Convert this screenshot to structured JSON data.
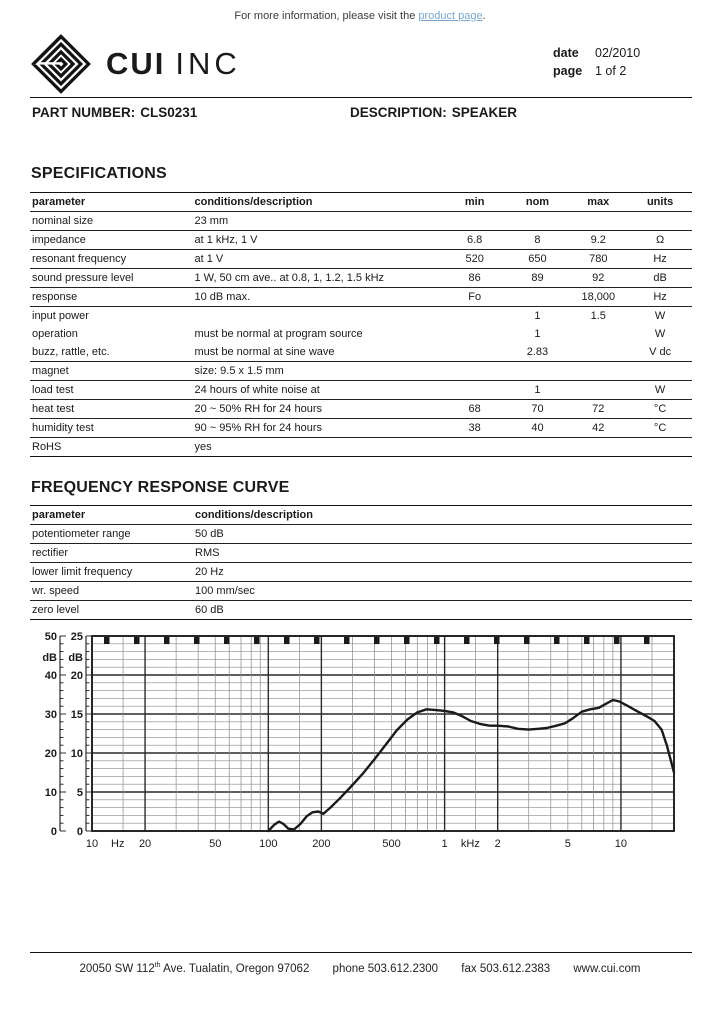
{
  "header": {
    "info_prefix": "For more information, please visit the ",
    "info_link": "product page",
    "info_suffix": ".",
    "brand_bold": "CUI",
    "brand_light": "INC",
    "date_label": "date",
    "date_value": "02/2010",
    "page_label": "page",
    "page_value": "1 of 2"
  },
  "part": {
    "part_label": "PART NUMBER:",
    "part_value": "CLS0231",
    "desc_label": "DESCRIPTION:",
    "desc_value": "SPEAKER"
  },
  "specifications": {
    "title": "SPECIFICATIONS",
    "columns": [
      "parameter",
      "conditions/description",
      "min",
      "nom",
      "max",
      "units"
    ],
    "rows": [
      {
        "cells": [
          "nominal size",
          "23 mm",
          "",
          "",
          "",
          ""
        ],
        "line": true
      },
      {
        "cells": [
          "impedance",
          "at 1 kHz, 1 V",
          "6.8",
          "8",
          "9.2",
          "Ω"
        ],
        "line": true
      },
      {
        "cells": [
          "resonant frequency",
          "at 1 V",
          "520",
          "650",
          "780",
          "Hz"
        ],
        "line": true
      },
      {
        "cells": [
          "sound pressure level",
          "1 W, 50 cm ave.. at 0.8, 1, 1.2, 1.5 kHz",
          "86",
          "89",
          "92",
          "dB"
        ],
        "line": true
      },
      {
        "cells": [
          "response",
          "10 dB max.",
          "Fo",
          "",
          "18,000",
          "Hz"
        ],
        "line": true
      },
      {
        "cells": [
          "input power",
          "",
          "",
          "1",
          "1.5",
          "W"
        ],
        "line": true
      },
      {
        "cells": [
          "operation",
          "must be normal at program source",
          "",
          "1",
          "",
          "W"
        ],
        "line": false
      },
      {
        "cells": [
          "buzz, rattle, etc.",
          "must be normal at sine wave",
          "",
          "2.83",
          "",
          "V dc"
        ],
        "line": false
      },
      {
        "cells": [
          "magnet",
          "size: 9.5 x 1.5 mm",
          "",
          "",
          "",
          ""
        ],
        "line": true
      },
      {
        "cells": [
          "load test",
          "24 hours of white noise at",
          "",
          "1",
          "",
          "W"
        ],
        "line": true
      },
      {
        "cells": [
          "heat test",
          "20 ~ 50% RH for 24 hours",
          "68",
          "70",
          "72",
          "°C"
        ],
        "line": true
      },
      {
        "cells": [
          "humidity test",
          "90 ~ 95% RH for 24 hours",
          "38",
          "40",
          "42",
          "°C"
        ],
        "line": true
      },
      {
        "cells": [
          "RoHS",
          "yes",
          "",
          "",
          "",
          ""
        ],
        "line": true
      }
    ]
  },
  "frequency_response": {
    "title": "FREQUENCY RESPONSE CURVE",
    "columns": [
      "parameter",
      "conditions/description"
    ],
    "rows": [
      [
        "potentiometer range",
        "50 dB"
      ],
      [
        "rectifier",
        "RMS"
      ],
      [
        "lower limit frequency",
        "20 Hz"
      ],
      [
        "wr. speed",
        "100 mm/sec"
      ],
      [
        "zero level",
        "60 dB"
      ]
    ]
  },
  "chart_data": {
    "type": "line",
    "title": "frequency response curve",
    "x_scale": "log",
    "xlabel_units": [
      "Hz",
      "kHz"
    ],
    "x_range_hz": [
      10,
      20000
    ],
    "x_tick_labels": [
      {
        "f": 10,
        "t": "10"
      },
      {
        "f": 14,
        "t": "Hz"
      },
      {
        "f": 20,
        "t": "20"
      },
      {
        "f": 50,
        "t": "50"
      },
      {
        "f": 100,
        "t": "100"
      },
      {
        "f": 200,
        "t": "200"
      },
      {
        "f": 500,
        "t": "500"
      },
      {
        "f": 1000,
        "t": "1"
      },
      {
        "f": 1400,
        "t": "kHz"
      },
      {
        "f": 2000,
        "t": "2"
      },
      {
        "f": 5000,
        "t": "5"
      },
      {
        "f": 10000,
        "t": "10"
      }
    ],
    "y_axis_outer": {
      "unit": "dB",
      "range": [
        0,
        50
      ],
      "labels": [
        [
          25,
          "50"
        ],
        [
          22.3,
          "dB"
        ],
        [
          20,
          "40"
        ],
        [
          15,
          "30"
        ],
        [
          10,
          "20"
        ],
        [
          5,
          "10"
        ],
        [
          0,
          "0"
        ]
      ]
    },
    "y_axis_inner": {
      "unit": "dB",
      "range": [
        0,
        25
      ],
      "labels": [
        [
          25,
          "25"
        ],
        [
          22.3,
          "dB"
        ],
        [
          20,
          "20"
        ],
        [
          15,
          "15"
        ],
        [
          10,
          "10"
        ],
        [
          5,
          "5"
        ],
        [
          0,
          "0"
        ]
      ]
    },
    "grid": {
      "y_minor_db": 1,
      "y_major_db": 5,
      "x_minor": "log 1.5,2..9 per decade",
      "x_major": "1,2 per decade"
    },
    "series": [
      {
        "name": "SPL response (inner dB scale)",
        "points_f_db": [
          [
            100,
            0
          ],
          [
            108,
            0.8
          ],
          [
            115,
            1.2
          ],
          [
            122,
            0.9
          ],
          [
            130,
            0.3
          ],
          [
            140,
            0.2
          ],
          [
            152,
            0.9
          ],
          [
            165,
            1.9
          ],
          [
            178,
            2.4
          ],
          [
            192,
            2.5
          ],
          [
            205,
            2.2
          ],
          [
            225,
            3.0
          ],
          [
            255,
            4.2
          ],
          [
            295,
            5.7
          ],
          [
            345,
            7.4
          ],
          [
            400,
            9.2
          ],
          [
            465,
            11.1
          ],
          [
            535,
            12.9
          ],
          [
            615,
            14.3
          ],
          [
            700,
            15.2
          ],
          [
            790,
            15.6
          ],
          [
            890,
            15.5
          ],
          [
            1000,
            15.4
          ],
          [
            1120,
            15.2
          ],
          [
            1260,
            14.7
          ],
          [
            1410,
            14.1
          ],
          [
            1600,
            13.7
          ],
          [
            1800,
            13.5
          ],
          [
            2000,
            13.5
          ],
          [
            2300,
            13.4
          ],
          [
            2600,
            13.1
          ],
          [
            3000,
            13.0
          ],
          [
            3400,
            13.1
          ],
          [
            3800,
            13.2
          ],
          [
            4300,
            13.5
          ],
          [
            4800,
            13.8
          ],
          [
            5300,
            14.4
          ],
          [
            6000,
            15.3
          ],
          [
            6700,
            15.6
          ],
          [
            7500,
            15.8
          ],
          [
            8200,
            16.3
          ],
          [
            9000,
            16.8
          ],
          [
            9800,
            16.6
          ],
          [
            11000,
            16.0
          ],
          [
            12500,
            15.3
          ],
          [
            14000,
            14.7
          ],
          [
            15500,
            14.1
          ],
          [
            17000,
            13.0
          ],
          [
            18200,
            11.0
          ],
          [
            19200,
            9.0
          ],
          [
            20000,
            7.5
          ]
        ]
      }
    ]
  },
  "footer": {
    "address_base": "20050 SW 112",
    "address_sup": "th",
    "address_rest": " Ave. Tualatin, Oregon 97062",
    "phone": "phone 503.612.2300",
    "fax": "fax 503.612.2383",
    "website": "www.cui.com"
  },
  "colors": {
    "ink": "#1a1a1a",
    "link": "#7ba7cc",
    "grid_minor": "#8a8a8a",
    "grid_major": "#2a2a2a"
  }
}
